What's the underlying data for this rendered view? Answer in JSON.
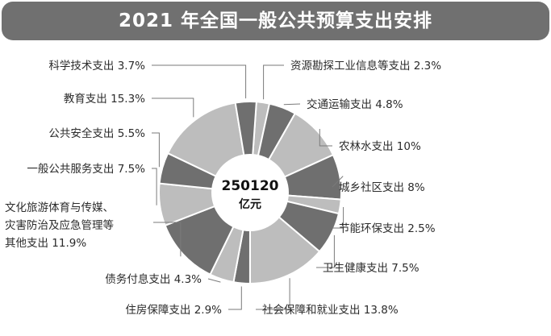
{
  "title": "2021 年全国一般公共预算支出安排",
  "colors": {
    "dark": "#6f6f6f",
    "light": "#bdbdbd",
    "title_bg": "#707070",
    "leader": "#7a7a7a"
  },
  "chart_data": {
    "type": "pie",
    "donut": true,
    "total": {
      "value": "250120",
      "unit": "亿元"
    },
    "slices": [
      {
        "label": "资源勘探工业信息等支出",
        "value": 2.3,
        "display": "资源勘探工业信息等支出 2.3%"
      },
      {
        "label": "交通运输支出",
        "value": 4.8,
        "display": "交通运输支出 4.8%"
      },
      {
        "label": "农林水支出",
        "value": 10,
        "display": "农林水支出 10%"
      },
      {
        "label": "城乡社区支出",
        "value": 8,
        "display": "城乡社区支出 8%"
      },
      {
        "label": "节能环保支出",
        "value": 2.5,
        "display": "节能环保支出 2.5%"
      },
      {
        "label": "卫生健康支出",
        "value": 7.5,
        "display": "卫生健康支出 7.5%"
      },
      {
        "label": "社会保障和就业支出",
        "value": 13.8,
        "display": "社会保障和就业支出 13.8%"
      },
      {
        "label": "住房保障支出",
        "value": 2.9,
        "display": "住房保障支出 2.9%"
      },
      {
        "label": "债务付息支出",
        "value": 4.3,
        "display": "债务付息支出 4.3%"
      },
      {
        "label": "文化旅游体育与传媒、灾害防治及应急管理等其他支出",
        "value": 11.9,
        "display_lines": [
          "文化旅游体育与传媒、",
          "灾害防治及应急管理等",
          "其他支出 11.9%"
        ]
      },
      {
        "label": "一般公共服务支出",
        "value": 7.5,
        "display": "一般公共服务支出 7.5%"
      },
      {
        "label": "公共安全支出",
        "value": 5.5,
        "display": "公共安全支出 5.5%"
      },
      {
        "label": "教育支出",
        "value": 15.3,
        "display": "教育支出 15.3%"
      },
      {
        "label": "科学技术支出",
        "value": 3.7,
        "display": "科学技术支出 3.7%"
      }
    ]
  }
}
